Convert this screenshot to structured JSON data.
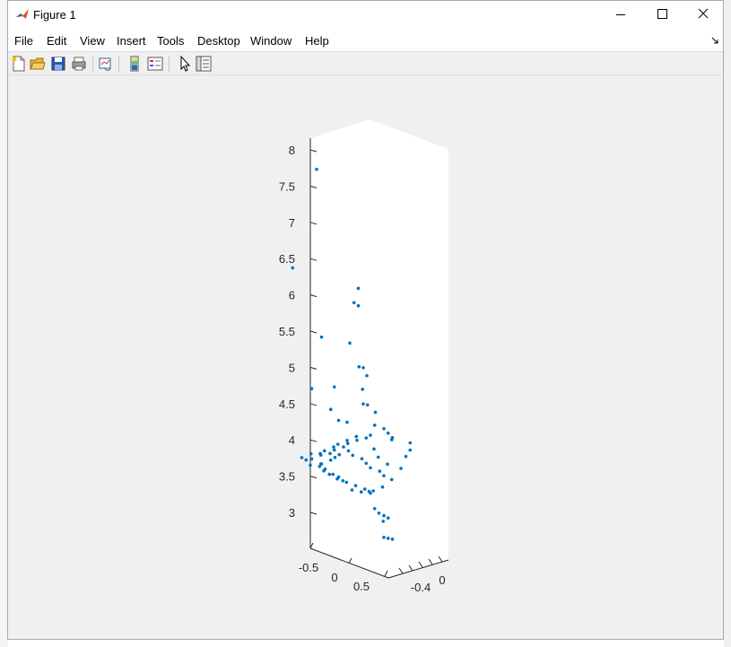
{
  "window": {
    "title": "Figure 1"
  },
  "menu": {
    "items": [
      "File",
      "Edit",
      "View",
      "Insert",
      "Tools",
      "Desktop",
      "Window",
      "Help"
    ]
  },
  "toolbar": {
    "tools": [
      "new-figure-icon",
      "open-file-icon",
      "save-icon",
      "print-icon",
      "link-plot-icon",
      "insert-colorbar-icon",
      "insert-legend-icon",
      "edit-plot-arrow-icon",
      "property-inspector-icon"
    ]
  },
  "chart_data": {
    "type": "scatter",
    "projection": "3d",
    "color": "#0072BD",
    "zticks": [
      "3",
      "3.5",
      "4",
      "4.5",
      "5",
      "5.5",
      "6",
      "6.5",
      "7",
      "7.5",
      "8"
    ],
    "xticks": [
      "-0.5",
      "0",
      "0.5"
    ],
    "yticks": [
      "-0.4",
      "0"
    ],
    "zlim": [
      2.5,
      8.2
    ],
    "points": [
      [
        -0.5,
        0.25,
        7.63
      ],
      [
        -0.55,
        0.05,
        6.32
      ],
      [
        -0.5,
        0.3,
        5.3
      ],
      [
        -0.5,
        0.2,
        4.62
      ],
      [
        -0.35,
        0.3,
        4.65
      ],
      [
        -0.45,
        0.35,
        4.3
      ],
      [
        -0.3,
        0.5,
        5.96
      ],
      [
        -0.35,
        0.5,
        5.75
      ],
      [
        -0.3,
        0.5,
        5.72
      ],
      [
        -0.4,
        0.5,
        5.18
      ],
      [
        -0.3,
        0.55,
        4.85
      ],
      [
        -0.35,
        0.55,
        4.85
      ],
      [
        -0.2,
        0.5,
        4.78
      ],
      [
        -0.25,
        0.5,
        4.58
      ],
      [
        -0.3,
        0.55,
        4.35
      ],
      [
        -0.25,
        0.55,
        4.35
      ],
      [
        -0.1,
        0.5,
        4.3
      ],
      [
        -0.3,
        0.3,
        4.2
      ],
      [
        -0.2,
        0.3,
        4.2
      ],
      [
        -0.05,
        0.45,
        4.15
      ],
      [
        -0.0,
        0.5,
        4.1
      ],
      [
        0.05,
        0.5,
        4.05
      ],
      [
        0.1,
        0.5,
        4.0
      ],
      [
        0.15,
        0.45,
        4.0
      ],
      [
        -0.15,
        0.35,
        4.0
      ],
      [
        -0.2,
        0.3,
        3.95
      ],
      [
        -0.25,
        0.25,
        3.9
      ],
      [
        -0.3,
        0.25,
        3.85
      ],
      [
        -0.35,
        0.2,
        3.8
      ],
      [
        -0.4,
        0.2,
        3.75
      ],
      [
        -0.45,
        0.15,
        3.75
      ],
      [
        -0.5,
        0.1,
        3.7
      ],
      [
        -0.45,
        0.1,
        3.68
      ],
      [
        -0.4,
        0.1,
        3.62
      ],
      [
        -0.35,
        0.15,
        3.6
      ],
      [
        -0.3,
        0.15,
        3.55
      ],
      [
        -0.25,
        0.2,
        3.5
      ],
      [
        -0.2,
        0.2,
        3.45
      ],
      [
        -0.15,
        0.25,
        3.4
      ],
      [
        -0.1,
        0.3,
        3.35
      ],
      [
        -0.05,
        0.35,
        3.3
      ],
      [
        0.0,
        0.35,
        3.28
      ],
      [
        0.05,
        0.35,
        3.3
      ],
      [
        0.1,
        0.4,
        3.35
      ],
      [
        0.15,
        0.45,
        3.45
      ],
      [
        0.2,
        0.5,
        3.6
      ],
      [
        0.2,
        0.55,
        3.75
      ],
      [
        0.25,
        0.55,
        3.85
      ],
      [
        0.25,
        0.55,
        3.95
      ],
      [
        -0.5,
        0.3,
        3.55
      ],
      [
        -0.45,
        0.35,
        3.6
      ],
      [
        -0.4,
        0.35,
        3.65
      ],
      [
        -0.35,
        0.35,
        3.7
      ],
      [
        -0.3,
        0.4,
        3.75
      ],
      [
        -0.25,
        0.4,
        3.7
      ],
      [
        -0.2,
        0.45,
        3.65
      ],
      [
        -0.15,
        0.45,
        3.6
      ],
      [
        -0.1,
        0.45,
        3.55
      ],
      [
        -0.05,
        0.5,
        3.5
      ],
      [
        0.0,
        0.5,
        3.45
      ],
      [
        -0.2,
        0.35,
        3.25
      ],
      [
        -0.15,
        0.4,
        3.22
      ],
      [
        -0.1,
        0.45,
        3.2
      ],
      [
        -0.05,
        0.45,
        3.0
      ],
      [
        0.0,
        0.45,
        2.95
      ],
      [
        0.0,
        0.5,
        2.9
      ],
      [
        0.05,
        0.45,
        2.85
      ],
      [
        0.05,
        0.5,
        2.88
      ],
      [
        0.0,
        0.5,
        2.6
      ],
      [
        0.05,
        0.5,
        2.6
      ],
      [
        0.1,
        0.5,
        2.6
      ],
      [
        -0.45,
        0.25,
        3.7
      ],
      [
        -0.4,
        0.3,
        3.72
      ],
      [
        -0.35,
        0.3,
        3.78
      ],
      [
        -0.3,
        0.35,
        3.82
      ],
      [
        -0.25,
        0.35,
        3.88
      ],
      [
        -0.2,
        0.4,
        3.92
      ],
      [
        -0.15,
        0.45,
        3.95
      ],
      [
        -0.1,
        0.45,
        4.0
      ],
      [
        0.0,
        0.4,
        3.85
      ],
      [
        0.05,
        0.4,
        3.75
      ],
      [
        0.1,
        0.45,
        3.65
      ],
      [
        -0.5,
        0.2,
        3.65
      ],
      [
        -0.45,
        0.25,
        3.58
      ],
      [
        -0.4,
        0.25,
        3.52
      ],
      [
        -0.35,
        0.25,
        3.46
      ],
      [
        -0.3,
        0.3,
        3.42
      ],
      [
        -0.25,
        0.3,
        3.38
      ]
    ]
  }
}
